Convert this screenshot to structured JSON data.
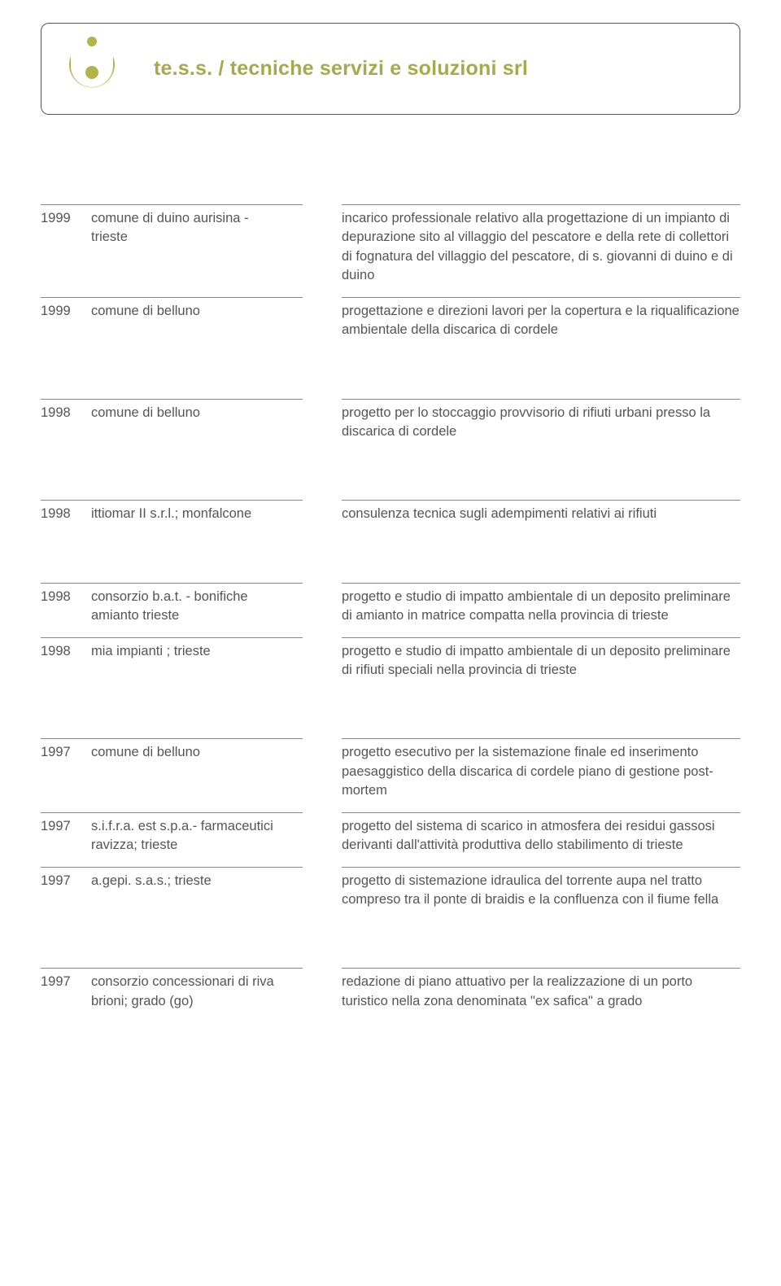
{
  "header": {
    "company": "te.s.s. / tecniche servizi e soluzioni srl",
    "logo_color": "#b2b44a"
  },
  "gaps": {
    "tight": 14,
    "group": 72
  },
  "entries": [
    {
      "year": "1999",
      "client": "comune di duino aurisina - trieste",
      "desc": "incarico professionale relativo alla progettazione di un impianto di depurazione sito al villaggio del pescatore e della rete di collettori di  fognatura del villaggio del pescatore, di s. giovanni di duino e di duino",
      "gap": "tight"
    },
    {
      "year": "1999",
      "client": "comune di belluno",
      "desc": "progettazione e direzioni lavori per la copertura e la riqualificazione ambientale della discarica di cordele",
      "gap": "group"
    },
    {
      "year": "1998",
      "client": "comune di belluno",
      "desc": "progetto per lo stoccaggio provvisorio di rifiuti urbani presso la discarica di cordele",
      "gap": "group"
    },
    {
      "year": "1998",
      "client": "ittiomar II s.r.l.; monfalcone",
      "desc": "consulenza tecnica sugli adempimenti relativi ai rifiuti",
      "gap": "group"
    },
    {
      "year": "1998",
      "client": "consorzio b.a.t. - bonifiche amianto trieste",
      "desc": "progetto e studio di impatto ambientale di un deposito preliminare di amianto in matrice compatta nella provincia di trieste",
      "gap": "tight"
    },
    {
      "year": "1998",
      "client": "mia impianti ; trieste",
      "desc": "progetto e studio di impatto ambientale di un deposito preliminare di rifiuti speciali nella provincia di trieste",
      "gap": "group"
    },
    {
      "year": "1997",
      "client": "comune di belluno",
      "desc": "progetto esecutivo per la sistemazione finale ed inserimento paesaggistico della discarica di cordele piano di gestione post-mortem",
      "gap": "tight"
    },
    {
      "year": "1997",
      "client": "s.i.f.r.a. est s.p.a.- farmaceutici ravizza; trieste",
      "desc": "progetto del sistema di scarico in atmosfera dei residui gassosi derivanti dall'attività produttiva dello stabilimento di trieste",
      "gap": "tight"
    },
    {
      "year": "1997",
      "client": "a.gepi. s.a.s.; trieste",
      "desc": "progetto di sistemazione idraulica del torrente aupa nel tratto compreso tra il ponte di braidis e la confluenza con il fiume fella",
      "gap": "group"
    },
    {
      "year": "1997",
      "client": "consorzio concessionari di riva brioni; grado (go)",
      "desc": "redazione di piano attuativo per la realizzazione di un porto turistico nella zona denominata \"ex safica\" a grado",
      "gap": "tight"
    }
  ]
}
